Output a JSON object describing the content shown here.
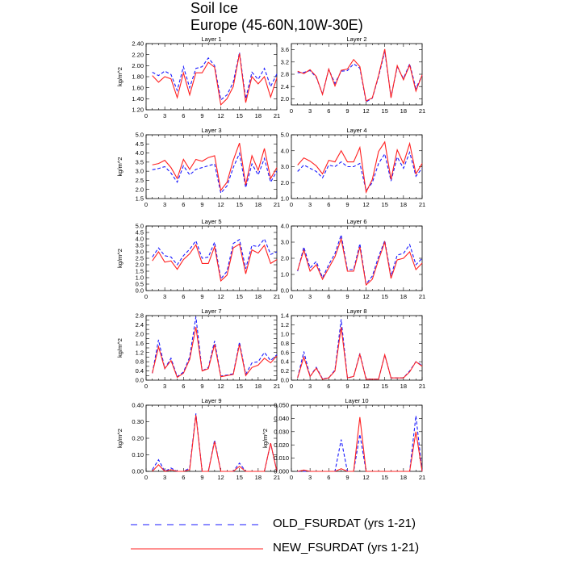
{
  "title": "Soil Ice",
  "subtitle": "Europe (45-60N,10W-30E)",
  "legend": [
    {
      "name": "OLD_FSURDAT (yrs 1-21)",
      "color": "#1a1aff",
      "dash": "dashed"
    },
    {
      "name": "NEW_FSURDAT (yrs 1-21)",
      "color": "#ff2020",
      "dash": "solid"
    }
  ],
  "chart_data": [
    {
      "type": "line",
      "title": "Layer 1",
      "ylabel": "kg/m^2",
      "xlim": [
        0,
        21
      ],
      "ylim": [
        1.2,
        2.4
      ],
      "xticks": [
        0,
        3,
        6,
        9,
        12,
        15,
        18,
        21
      ],
      "yticks": [
        1.2,
        1.4,
        1.6,
        1.8,
        2.0,
        2.2,
        2.4
      ],
      "ytick_labels": [
        "1.20",
        "1.40",
        "1.60",
        "1.80",
        "2.00",
        "2.20",
        "2.40"
      ],
      "x": [
        1,
        2,
        3,
        4,
        5,
        6,
        7,
        8,
        9,
        10,
        11,
        12,
        13,
        14,
        15,
        16,
        17,
        18,
        19,
        20,
        21
      ],
      "series": [
        {
          "name": "OLD_FSURDAT (yrs 1-21)",
          "values": [
            1.88,
            1.82,
            1.9,
            1.84,
            1.55,
            1.98,
            1.6,
            1.95,
            1.98,
            2.14,
            2.0,
            1.38,
            1.47,
            1.7,
            2.24,
            1.4,
            1.88,
            1.75,
            1.95,
            1.62,
            1.85
          ]
        },
        {
          "name": "NEW_FSURDAT (yrs 1-21)",
          "values": [
            1.82,
            1.7,
            1.8,
            1.76,
            1.42,
            1.87,
            1.47,
            1.87,
            1.87,
            2.06,
            1.97,
            1.29,
            1.4,
            1.62,
            2.22,
            1.33,
            1.8,
            1.67,
            1.8,
            1.43,
            1.78
          ]
        }
      ]
    },
    {
      "type": "line",
      "title": "Layer 2",
      "ylabel": "",
      "xlim": [
        0,
        21
      ],
      "ylim": [
        1.8,
        3.8
      ],
      "xticks": [
        0,
        3,
        6,
        9,
        12,
        15,
        18,
        21
      ],
      "yticks": [
        2.0,
        2.4,
        2.8,
        3.2,
        3.6
      ],
      "ytick_labels": [
        "2.0",
        "2.4",
        "2.8",
        "3.2",
        "3.6"
      ],
      "x": [
        1,
        2,
        3,
        4,
        5,
        6,
        7,
        8,
        9,
        10,
        11,
        12,
        13,
        14,
        15,
        16,
        17,
        18,
        19,
        20,
        21
      ],
      "series": [
        {
          "name": "OLD_FSURDAT (yrs 1-21)",
          "values": [
            2.85,
            2.86,
            2.92,
            2.7,
            2.16,
            2.96,
            2.5,
            2.9,
            2.92,
            3.14,
            3.0,
            1.9,
            2.02,
            2.72,
            3.55,
            2.06,
            3.04,
            2.66,
            3.14,
            2.34,
            2.76
          ]
        },
        {
          "name": "NEW_FSURDAT (yrs 1-21)",
          "values": [
            2.9,
            2.82,
            2.95,
            2.73,
            2.14,
            2.97,
            2.42,
            2.93,
            2.97,
            3.28,
            3.05,
            1.93,
            2.03,
            2.76,
            3.62,
            2.03,
            3.08,
            2.62,
            3.1,
            2.25,
            2.78
          ]
        }
      ]
    },
    {
      "type": "line",
      "title": "Layer 3",
      "ylabel": "kg/m^2",
      "xlim": [
        0,
        21
      ],
      "ylim": [
        1.5,
        5.0
      ],
      "xticks": [
        0,
        3,
        6,
        9,
        12,
        15,
        18,
        21
      ],
      "yticks": [
        1.5,
        2.0,
        2.5,
        3.0,
        3.5,
        4.0,
        4.5,
        5.0
      ],
      "ytick_labels": [
        "1.5",
        "2.0",
        "2.5",
        "3.0",
        "3.5",
        "4.0",
        "4.5",
        "5.0"
      ],
      "x": [
        1,
        2,
        3,
        4,
        5,
        6,
        7,
        8,
        9,
        10,
        11,
        12,
        13,
        14,
        15,
        16,
        17,
        18,
        19,
        20,
        21
      ],
      "series": [
        {
          "name": "OLD_FSURDAT (yrs 1-21)",
          "values": [
            3.08,
            3.15,
            3.25,
            2.9,
            2.4,
            3.3,
            2.8,
            3.1,
            3.2,
            3.3,
            3.4,
            1.8,
            2.2,
            3.2,
            3.98,
            2.1,
            3.4,
            2.8,
            3.7,
            2.4,
            3.0
          ]
        },
        {
          "name": "NEW_FSURDAT (yrs 1-21)",
          "values": [
            3.35,
            3.42,
            3.6,
            3.2,
            2.6,
            3.65,
            3.1,
            3.65,
            3.55,
            3.75,
            3.85,
            1.95,
            2.4,
            3.6,
            4.55,
            2.25,
            3.85,
            3.05,
            4.25,
            2.6,
            3.2
          ]
        }
      ]
    },
    {
      "type": "line",
      "title": "Layer 4",
      "ylabel": "",
      "xlim": [
        0,
        21
      ],
      "ylim": [
        1.0,
        5.0
      ],
      "xticks": [
        0,
        3,
        6,
        9,
        12,
        15,
        18,
        21
      ],
      "yticks": [
        1.0,
        2.0,
        3.0,
        4.0,
        5.0
      ],
      "ytick_labels": [
        "1.0",
        "2.0",
        "3.0",
        "4.0",
        "5.0"
      ],
      "x": [
        1,
        2,
        3,
        4,
        5,
        6,
        7,
        8,
        9,
        10,
        11,
        12,
        13,
        14,
        15,
        16,
        17,
        18,
        19,
        20,
        21
      ],
      "series": [
        {
          "name": "OLD_FSURDAT (yrs 1-21)",
          "values": [
            2.7,
            3.1,
            2.9,
            2.7,
            2.3,
            3.1,
            3.0,
            3.3,
            3.0,
            3.0,
            3.2,
            1.5,
            2.0,
            3.2,
            3.8,
            2.1,
            3.6,
            2.9,
            3.9,
            2.4,
            2.9
          ]
        },
        {
          "name": "NEW_FSURDAT (yrs 1-21)",
          "values": [
            3.1,
            3.55,
            3.35,
            3.05,
            2.55,
            3.4,
            3.3,
            4.0,
            3.3,
            3.3,
            4.2,
            1.4,
            2.2,
            3.95,
            4.55,
            2.2,
            4.05,
            3.2,
            4.45,
            2.55,
            3.2
          ]
        }
      ]
    },
    {
      "type": "line",
      "title": "Layer 5",
      "ylabel": "kg/m^2",
      "xlim": [
        0,
        21
      ],
      "ylim": [
        0.0,
        5.0
      ],
      "xticks": [
        0,
        3,
        6,
        9,
        12,
        15,
        18,
        21
      ],
      "yticks": [
        0.0,
        0.5,
        1.0,
        1.5,
        2.0,
        2.5,
        3.0,
        3.5,
        4.0,
        4.5,
        5.0
      ],
      "ytick_labels": [
        "0.0",
        "0.5",
        "1.0",
        "1.5",
        "2.0",
        "2.5",
        "3.0",
        "3.5",
        "4.0",
        "4.5",
        "5.0"
      ],
      "x": [
        1,
        2,
        3,
        4,
        5,
        6,
        7,
        8,
        9,
        10,
        11,
        12,
        13,
        14,
        15,
        16,
        17,
        18,
        19,
        20,
        21
      ],
      "series": [
        {
          "name": "OLD_FSURDAT (yrs 1-21)",
          "values": [
            2.6,
            3.3,
            2.7,
            2.6,
            2.0,
            2.7,
            3.2,
            3.85,
            2.5,
            2.6,
            3.75,
            0.9,
            1.5,
            3.65,
            3.95,
            1.7,
            3.5,
            3.4,
            4.0,
            2.8,
            3.0
          ]
        },
        {
          "name": "NEW_FSURDAT (yrs 1-21)",
          "values": [
            2.3,
            3.0,
            2.2,
            2.3,
            1.65,
            2.4,
            2.85,
            3.55,
            2.1,
            2.1,
            3.4,
            0.75,
            1.2,
            3.3,
            3.6,
            1.3,
            3.15,
            2.9,
            3.5,
            2.1,
            2.4
          ]
        }
      ]
    },
    {
      "type": "line",
      "title": "Layer 6",
      "ylabel": "",
      "xlim": [
        0,
        21
      ],
      "ylim": [
        0.0,
        4.0
      ],
      "xticks": [
        0,
        3,
        6,
        9,
        12,
        15,
        18,
        21
      ],
      "yticks": [
        0.0,
        1.0,
        2.0,
        3.0,
        4.0
      ],
      "ytick_labels": [
        "0.0",
        "1.0",
        "2.0",
        "3.0",
        "4.0"
      ],
      "x": [
        1,
        2,
        3,
        4,
        5,
        6,
        7,
        8,
        9,
        10,
        11,
        12,
        13,
        14,
        15,
        16,
        17,
        18,
        19,
        20,
        21
      ],
      "series": [
        {
          "name": "OLD_FSURDAT (yrs 1-21)",
          "values": [
            1.2,
            2.7,
            1.4,
            1.8,
            0.8,
            1.6,
            2.3,
            3.45,
            1.3,
            1.3,
            2.9,
            0.4,
            0.9,
            2.1,
            3.1,
            0.9,
            2.2,
            2.3,
            2.85,
            1.6,
            2.0
          ]
        },
        {
          "name": "NEW_FSURDAT (yrs 1-21)",
          "values": [
            1.25,
            2.5,
            1.2,
            1.6,
            0.7,
            1.4,
            2.1,
            3.2,
            1.2,
            1.2,
            2.7,
            0.35,
            0.7,
            1.9,
            3.0,
            0.75,
            1.9,
            2.0,
            2.4,
            1.3,
            1.7
          ]
        }
      ]
    },
    {
      "type": "line",
      "title": "Layer 7",
      "ylabel": "kg/m^2",
      "xlim": [
        0,
        21
      ],
      "ylim": [
        0.0,
        2.8
      ],
      "xticks": [
        0,
        3,
        6,
        9,
        12,
        15,
        18,
        21
      ],
      "yticks": [
        0.0,
        0.2,
        0.4,
        0.6,
        0.8,
        1.0,
        1.2,
        1.4,
        1.6,
        1.8,
        2.0,
        2.2,
        2.4,
        2.6,
        2.8
      ],
      "ytick_labels": [
        "0.0",
        "",
        "0.4",
        "",
        "0.8",
        "",
        "1.2",
        "",
        "1.6",
        "",
        "2.0",
        "",
        "2.4",
        "",
        "2.8"
      ],
      "x": [
        1,
        2,
        3,
        4,
        5,
        6,
        7,
        8,
        9,
        10,
        11,
        12,
        13,
        14,
        15,
        16,
        17,
        18,
        19,
        20,
        21
      ],
      "series": [
        {
          "name": "OLD_FSURDAT (yrs 1-21)",
          "values": [
            0.3,
            1.75,
            0.5,
            0.95,
            0.15,
            0.35,
            1.0,
            2.75,
            0.4,
            0.55,
            1.7,
            0.18,
            0.22,
            0.28,
            1.65,
            0.25,
            0.75,
            0.8,
            1.2,
            0.85,
            1.1
          ]
        },
        {
          "name": "NEW_FSURDAT (yrs 1-21)",
          "values": [
            0.3,
            1.45,
            0.5,
            0.85,
            0.12,
            0.3,
            0.9,
            2.3,
            0.4,
            0.5,
            1.55,
            0.15,
            0.2,
            0.25,
            1.55,
            0.2,
            0.55,
            0.65,
            0.95,
            0.75,
            1.05
          ]
        }
      ]
    },
    {
      "type": "line",
      "title": "Layer 8",
      "ylabel": "",
      "xlim": [
        0,
        21
      ],
      "ylim": [
        0.0,
        1.4
      ],
      "xticks": [
        0,
        3,
        6,
        9,
        12,
        15,
        18,
        21
      ],
      "yticks": [
        0.0,
        0.2,
        0.4,
        0.6,
        0.8,
        1.0,
        1.2,
        1.4
      ],
      "ytick_labels": [
        "0.0",
        "0.2",
        "0.4",
        "0.6",
        "0.8",
        "1.0",
        "1.2",
        "1.4"
      ],
      "x": [
        1,
        2,
        3,
        4,
        5,
        6,
        7,
        8,
        9,
        10,
        11,
        12,
        13,
        14,
        15,
        16,
        17,
        18,
        19,
        20,
        21
      ],
      "series": [
        {
          "name": "OLD_FSURDAT (yrs 1-21)",
          "values": [
            0.05,
            0.62,
            0.08,
            0.28,
            0.03,
            0.05,
            0.22,
            1.32,
            0.05,
            0.08,
            0.58,
            0.03,
            0.02,
            0.02,
            0.55,
            0.05,
            0.05,
            0.05,
            0.2,
            0.4,
            0.32
          ]
        },
        {
          "name": "NEW_FSURDAT (yrs 1-21)",
          "values": [
            0.05,
            0.5,
            0.08,
            0.26,
            0.02,
            0.05,
            0.2,
            1.15,
            0.05,
            0.08,
            0.56,
            0.02,
            0.02,
            0.02,
            0.55,
            0.05,
            0.05,
            0.05,
            0.18,
            0.4,
            0.3
          ]
        }
      ]
    },
    {
      "type": "line",
      "title": "Layer 9",
      "ylabel": "kg/m^2",
      "xlim": [
        0,
        21
      ],
      "ylim": [
        0.0,
        0.4
      ],
      "xticks": [
        0,
        3,
        6,
        9,
        12,
        15,
        18,
        21
      ],
      "yticks": [
        0.0,
        0.1,
        0.2,
        0.3,
        0.4
      ],
      "ytick_labels": [
        "0.00",
        "0.10",
        "0.20",
        "0.30",
        "0.40"
      ],
      "x": [
        1,
        2,
        3,
        4,
        5,
        6,
        7,
        8,
        9,
        10,
        11,
        12,
        13,
        14,
        15,
        16,
        17,
        18,
        19,
        20,
        21
      ],
      "series": [
        {
          "name": "OLD_FSURDAT (yrs 1-21)",
          "values": [
            0.01,
            0.07,
            0.0,
            0.02,
            0.0,
            0.0,
            0.02,
            0.35,
            0.0,
            0.0,
            0.19,
            0.0,
            0.0,
            0.0,
            0.05,
            0.0,
            0.0,
            0.0,
            0.0,
            0.17,
            0.0
          ]
        },
        {
          "name": "NEW_FSURDAT (yrs 1-21)",
          "values": [
            0.0,
            0.04,
            0.0,
            0.01,
            0.0,
            0.0,
            0.01,
            0.34,
            0.0,
            0.0,
            0.18,
            0.0,
            0.0,
            0.0,
            0.03,
            0.0,
            0.0,
            0.0,
            0.0,
            0.17,
            0.0
          ]
        }
      ]
    },
    {
      "type": "line",
      "title": "Layer 10",
      "ylabel": "kg/m^2",
      "xlim": [
        0,
        21
      ],
      "ylim": [
        0.0,
        0.05
      ],
      "xticks": [
        0,
        3,
        6,
        9,
        12,
        15,
        18,
        21
      ],
      "yticks": [
        0.0,
        0.01,
        0.02,
        0.03,
        0.04,
        0.05
      ],
      "ytick_labels": [
        "0.000",
        "0.010",
        "0.020",
        "0.030",
        "0.040",
        "0.050"
      ],
      "x": [
        1,
        2,
        3,
        4,
        5,
        6,
        7,
        8,
        9,
        10,
        11,
        12,
        13,
        14,
        15,
        16,
        17,
        18,
        19,
        20,
        21
      ],
      "series": [
        {
          "name": "OLD_FSURDAT (yrs 1-21)",
          "values": [
            0.0,
            0.0,
            0.0,
            0.0,
            0.0,
            0.0,
            0.0,
            0.024,
            0.0,
            0.0,
            0.028,
            0.0,
            0.0,
            0.0,
            0.0,
            0.0,
            0.0,
            0.0,
            0.0,
            0.042,
            0.0
          ]
        },
        {
          "name": "NEW_FSURDAT (yrs 1-21)",
          "values": [
            0.0,
            0.001,
            0.0,
            0.0,
            0.0,
            0.0,
            0.0,
            0.002,
            0.0,
            0.0,
            0.041,
            0.0,
            0.0,
            0.0,
            0.0,
            0.0,
            0.0,
            0.0,
            0.0,
            0.03,
            0.0
          ]
        }
      ]
    }
  ]
}
